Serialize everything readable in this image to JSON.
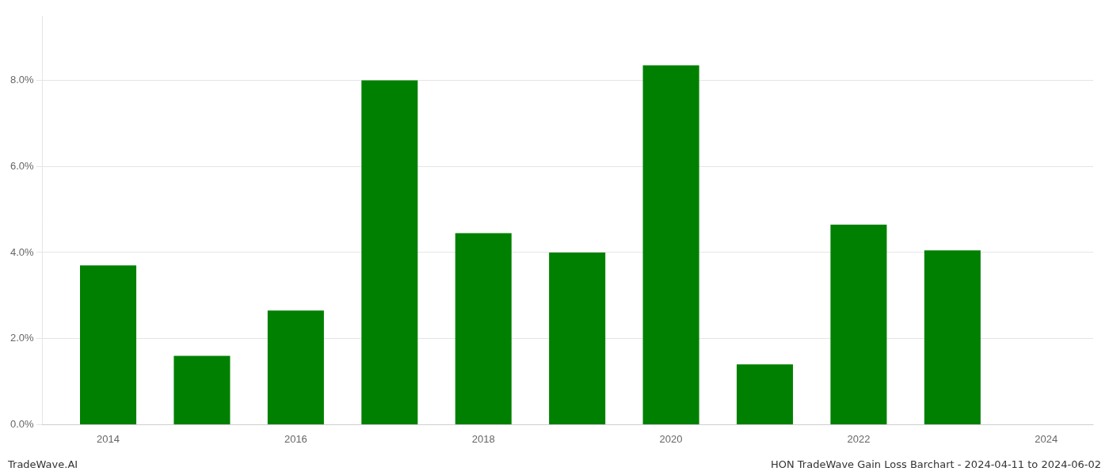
{
  "chart_data": {
    "type": "bar",
    "x": [
      2014,
      2015,
      2016,
      2017,
      2018,
      2019,
      2020,
      2021,
      2022,
      2023
    ],
    "values": [
      0.037,
      0.016,
      0.0265,
      0.08,
      0.0445,
      0.04,
      0.0835,
      0.014,
      0.0465,
      0.0405
    ],
    "color": "#008000",
    "xlim": [
      2013.3,
      2024.5
    ],
    "xticks": [
      2014,
      2016,
      2018,
      2020,
      2022,
      2024
    ],
    "ylim": [
      0,
      0.095
    ],
    "yticks": [
      {
        "value": 0.0,
        "label": "0.0%"
      },
      {
        "value": 0.02,
        "label": "2.0%"
      },
      {
        "value": 0.04,
        "label": "4.0%"
      },
      {
        "value": 0.06,
        "label": "6.0%"
      },
      {
        "value": 0.08,
        "label": "8.0%"
      }
    ],
    "grid": "y",
    "annotations": [
      "TradeWave.AI",
      "HON TradeWave Gain Loss Barchart - 2024-04-11 to 2024-06-02"
    ]
  }
}
